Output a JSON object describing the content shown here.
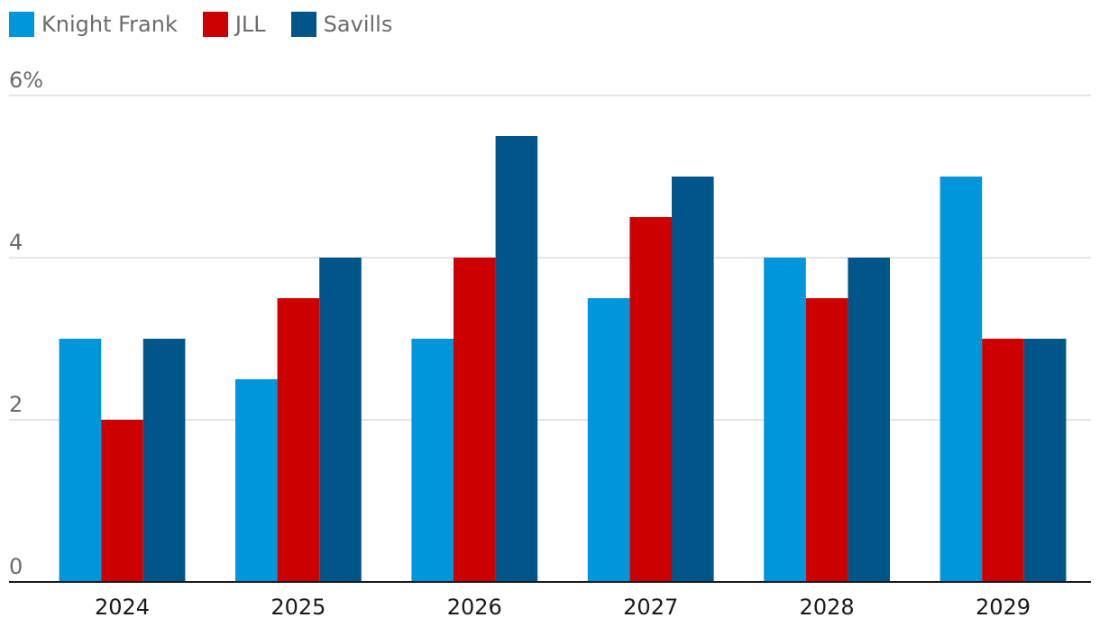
{
  "chart_data": {
    "type": "bar",
    "categories": [
      "2024",
      "2025",
      "2026",
      "2027",
      "2028",
      "2029"
    ],
    "series": [
      {
        "name": "Knight Frank",
        "values": [
          3,
          2.5,
          3,
          3.5,
          4,
          5
        ],
        "color": "#0096db"
      },
      {
        "name": "JLL",
        "values": [
          2,
          3.5,
          4,
          4.5,
          3.5,
          3
        ],
        "color": "#cc0000"
      },
      {
        "name": "Savills",
        "values": [
          3,
          4,
          5.5,
          5,
          4,
          3
        ],
        "color": "#005689"
      }
    ],
    "y_ticks": [
      "0",
      "2",
      "4",
      "6%"
    ],
    "ylim": [
      0,
      6
    ],
    "grid": true,
    "legend_position": "top-left",
    "title": "",
    "xlabel": "",
    "ylabel": ""
  }
}
